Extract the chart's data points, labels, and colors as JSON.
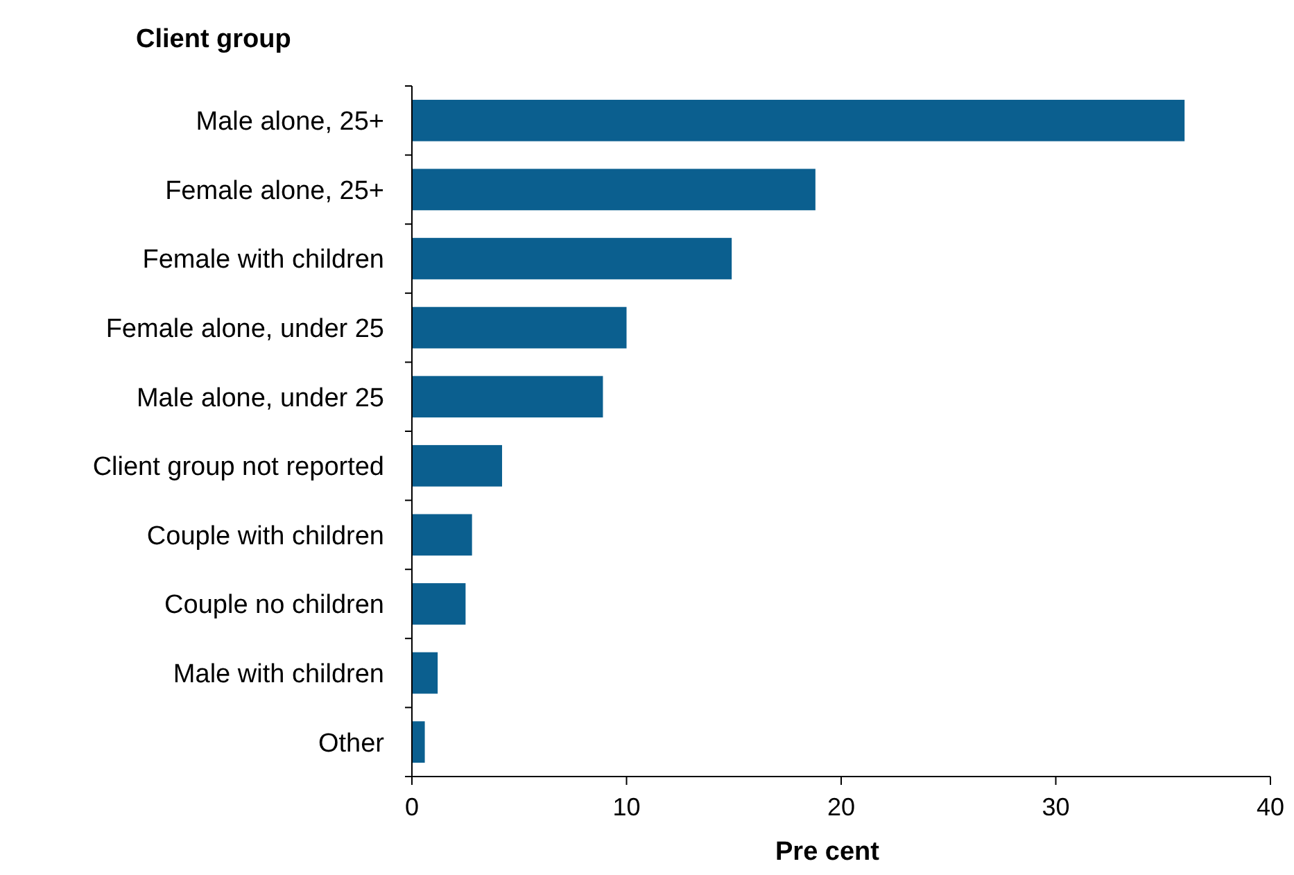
{
  "chart_data": {
    "type": "bar",
    "orientation": "horizontal",
    "ylabel": "Client group",
    "xlabel": "Pre cent",
    "categories": [
      "Male alone, 25+",
      "Female alone, 25+",
      "Female with children",
      "Female alone, under 25",
      "Male alone, under 25",
      "Client group not reported",
      "Couple with children",
      "Couple no children",
      "Male with children",
      "Other"
    ],
    "values": [
      36.0,
      18.8,
      14.9,
      10.0,
      8.9,
      4.2,
      2.8,
      2.5,
      1.2,
      0.6
    ],
    "color": "#0b5f8f",
    "xlim": [
      0,
      40
    ],
    "xticks": [
      0,
      10,
      20,
      30,
      40
    ]
  }
}
